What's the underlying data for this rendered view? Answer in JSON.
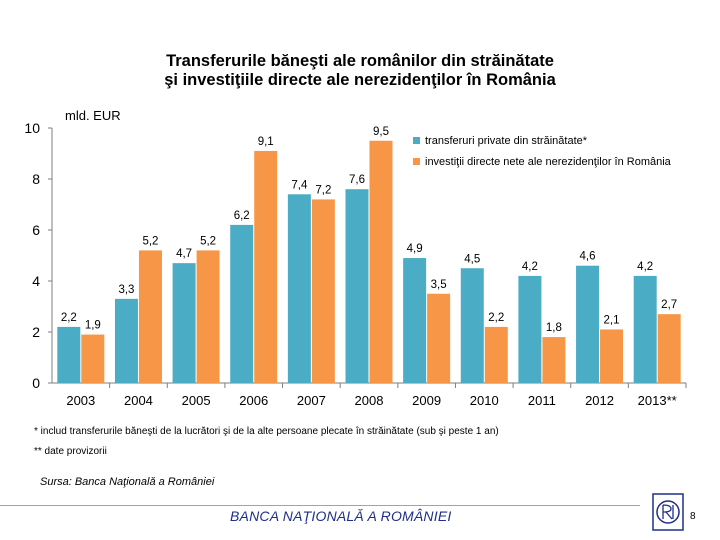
{
  "title_line1": "Transferurile băneşti ale românilor din străinătate",
  "title_line2": "şi investiţiile directe ale nerezidenţilor în România",
  "footnote1": "* includ transferurile băneşti de la lucrători şi de la alte persoane plecate în străinătate (sub şi peste 1 an)",
  "footnote2": "** date provizorii",
  "source": "Sursa: Banca Naţională a României",
  "bank_name": "BANCA NAŢIONALĂ A ROMÂNIEI",
  "page_number": "8",
  "colors": {
    "transfers": "#4BACC6",
    "fdi": "#F79646",
    "axis": "#7f7f7f",
    "bank_text": "#1f2e8a"
  },
  "chart_data": {
    "type": "bar",
    "categories": [
      "2003",
      "2004",
      "2005",
      "2006",
      "2007",
      "2008",
      "2009",
      "2010",
      "2011",
      "2012",
      "2013**"
    ],
    "series": [
      {
        "name": "transferuri private din străinătate*",
        "values": [
          2.2,
          3.3,
          4.7,
          6.2,
          7.4,
          7.6,
          4.9,
          4.5,
          4.2,
          4.6,
          4.2
        ],
        "labels": [
          "2,2",
          "3,3",
          "4,7",
          "6,2",
          "7,4",
          "7,6",
          "4,9",
          "4,5",
          "4,2",
          "4,6",
          "4,2"
        ]
      },
      {
        "name": "investiţii directe nete ale nerezidenţilor în România",
        "values": [
          1.9,
          5.2,
          5.2,
          9.1,
          7.2,
          9.5,
          3.5,
          2.2,
          1.8,
          2.1,
          2.7
        ],
        "labels": [
          "1,9",
          "5,2",
          "5,2",
          "9,1",
          "7,2",
          "9,5",
          "3,5",
          "2,2",
          "1,8",
          "2,1",
          "2,7"
        ]
      }
    ],
    "ylabel": "mld. EUR",
    "ylim": [
      0,
      10
    ],
    "yticks": [
      "0",
      "2",
      "4",
      "6",
      "8",
      "10"
    ],
    "legend_position": "top-right"
  }
}
